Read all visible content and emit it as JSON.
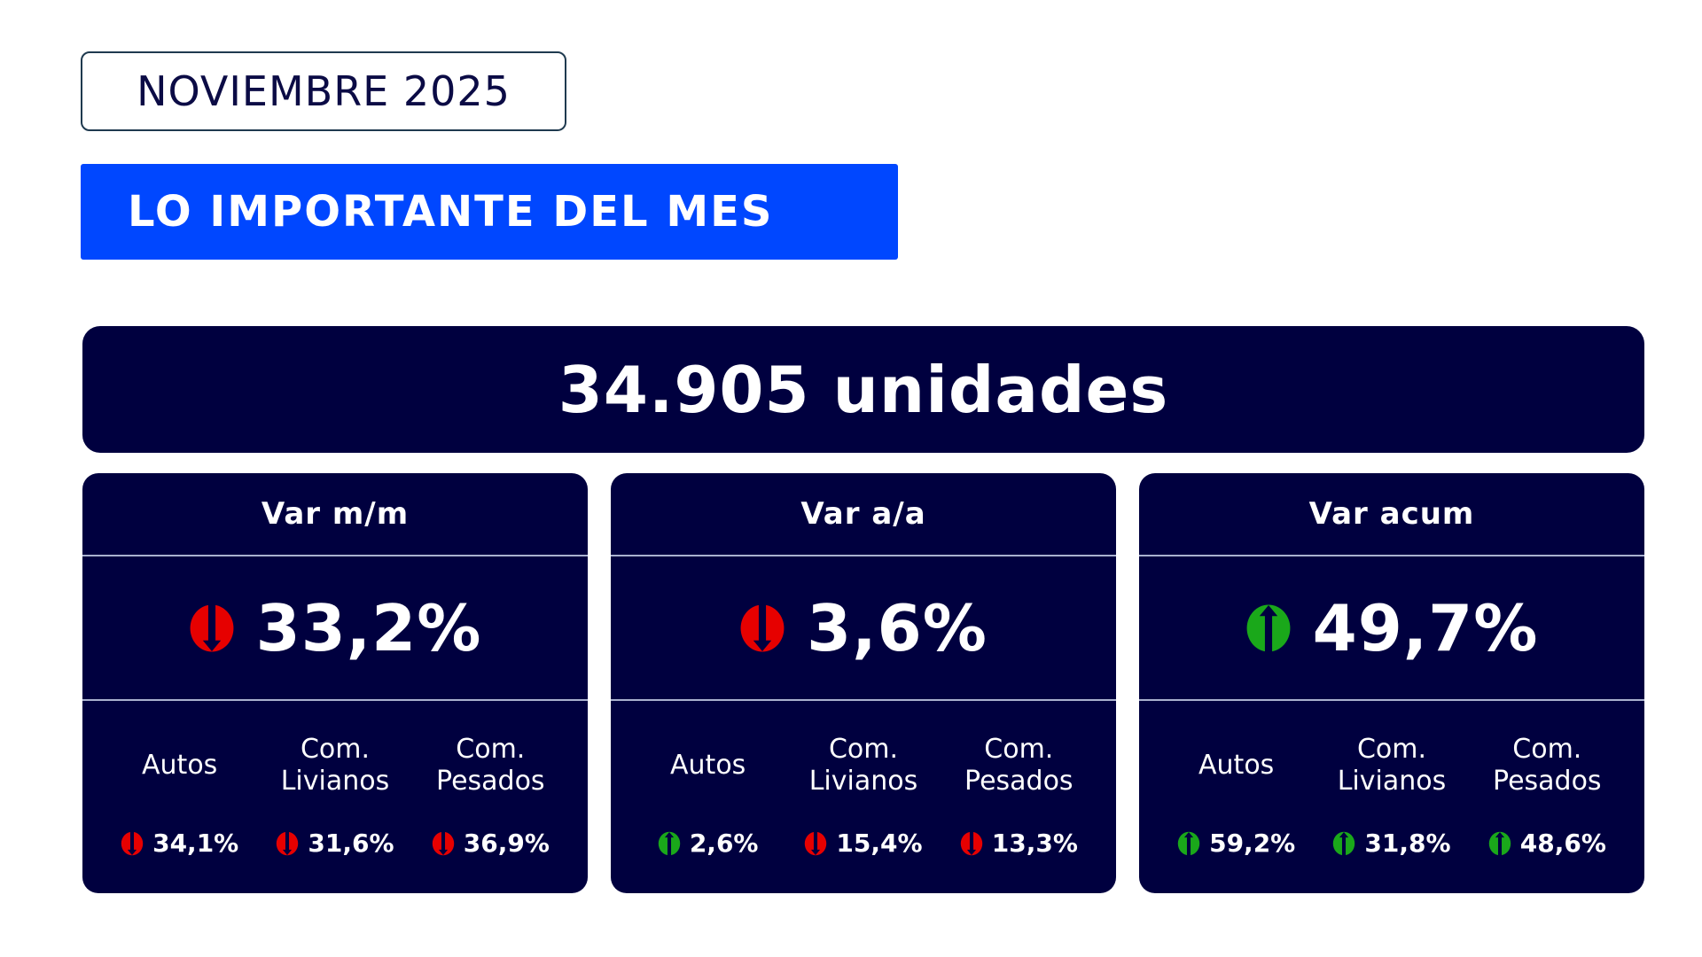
{
  "header": {
    "period": "NOVIEMBRE 2025",
    "title": "LO IMPORTANTE DEL MES"
  },
  "banner": {
    "total": "34.905 unidades"
  },
  "colors": {
    "brand_blue": "#0047ff",
    "navy": "#00003f",
    "down": "#e60000",
    "up": "#1aa81a"
  },
  "cards": [
    {
      "title": "Var m/m",
      "value": "33,2%",
      "direction": "down",
      "icon": "down-arrow-icon",
      "breakdown": [
        {
          "label_line1": "Autos",
          "label_line2": "",
          "value": "34,1%",
          "direction": "down"
        },
        {
          "label_line1": "Com.",
          "label_line2": "Livianos",
          "value": "31,6%",
          "direction": "down"
        },
        {
          "label_line1": "Com.",
          "label_line2": "Pesados",
          "value": "36,9%",
          "direction": "down"
        }
      ]
    },
    {
      "title": "Var a/a",
      "value": "3,6%",
      "direction": "down",
      "icon": "down-arrow-icon",
      "breakdown": [
        {
          "label_line1": "Autos",
          "label_line2": "",
          "value": "2,6%",
          "direction": "up"
        },
        {
          "label_line1": "Com.",
          "label_line2": "Livianos",
          "value": "15,4%",
          "direction": "down"
        },
        {
          "label_line1": "Com.",
          "label_line2": "Pesados",
          "value": "13,3%",
          "direction": "down"
        }
      ]
    },
    {
      "title": "Var acum",
      "value": "49,7%",
      "direction": "up",
      "icon": "up-arrow-icon",
      "breakdown": [
        {
          "label_line1": "Autos",
          "label_line2": "",
          "value": "59,2%",
          "direction": "up"
        },
        {
          "label_line1": "Com.",
          "label_line2": "Livianos",
          "value": "31,8%",
          "direction": "up"
        },
        {
          "label_line1": "Com.",
          "label_line2": "Pesados",
          "value": "48,6%",
          "direction": "up"
        }
      ]
    }
  ]
}
